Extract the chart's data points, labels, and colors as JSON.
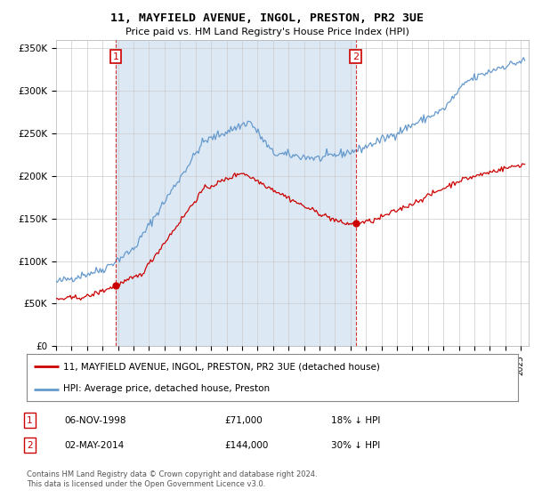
{
  "title": "11, MAYFIELD AVENUE, INGOL, PRESTON, PR2 3UE",
  "subtitle": "Price paid vs. HM Land Registry's House Price Index (HPI)",
  "ylabel_ticks": [
    "£0",
    "£50K",
    "£100K",
    "£150K",
    "£200K",
    "£250K",
    "£300K",
    "£350K"
  ],
  "ylim": [
    0,
    360000
  ],
  "xlim_start": 1995.0,
  "xlim_end": 2025.5,
  "sale1_date": 1998.85,
  "sale1_price": 71000,
  "sale2_date": 2014.33,
  "sale2_price": 144000,
  "legend_line1": "11, MAYFIELD AVENUE, INGOL, PRESTON, PR2 3UE (detached house)",
  "legend_line2": "HPI: Average price, detached house, Preston",
  "color_red": "#cc0000",
  "color_blue": "#6699cc",
  "color_shade": "#dce9f5",
  "background_color": "#ffffff",
  "grid_color": "#cccccc"
}
